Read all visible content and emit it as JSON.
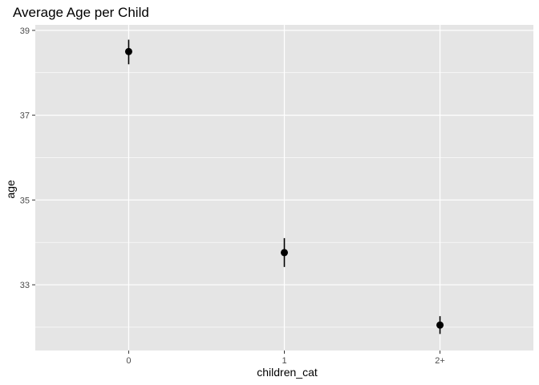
{
  "chart_data": {
    "type": "scatter",
    "title": "Average Age per Child",
    "xlabel": "children_cat",
    "ylabel": "age",
    "categories": [
      "0",
      "1",
      "2+"
    ],
    "values": [
      38.5,
      33.76,
      32.05
    ],
    "error_low": [
      38.2,
      33.42,
      31.84
    ],
    "error_high": [
      38.78,
      34.1,
      32.26
    ],
    "ylim": [
      31.45,
      39.13
    ],
    "yticks": [
      33,
      35,
      37,
      39
    ],
    "ytick_labels": [
      "33",
      "35",
      "37",
      "39"
    ],
    "grid": true,
    "panel_color": "#e5e5e5",
    "grid_color": "#ffffff",
    "point_color": "#000000"
  }
}
